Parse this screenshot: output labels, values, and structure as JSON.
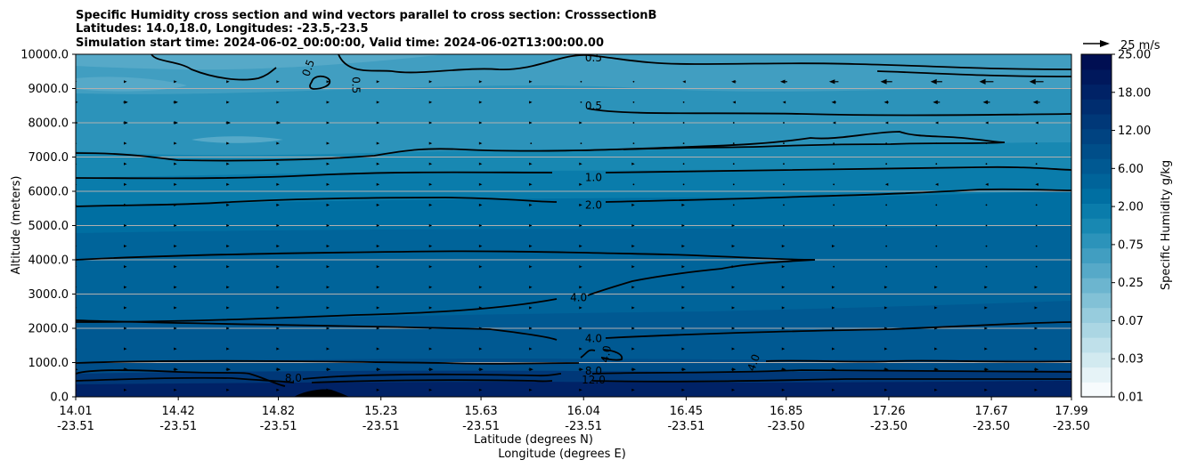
{
  "chart_data": {
    "type": "heatmap",
    "title_lines": [
      "Specific Humidity cross section and wind vectors parallel to cross section: CrosssectionB",
      "Latitudes: 14.0,18.0, Longitudes: -23.5,-23.5",
      "Simulation start time: 2024-06-02_00:00:00, Valid time: 2024-06-02T13:00:00.00"
    ],
    "ylabel": "Altitude (meters)",
    "xlabel_lat": "Latitude (degrees N)",
    "xlabel_lon": "Longitude (degrees E)",
    "ylim": [
      0,
      10000
    ],
    "y_ticks": [
      "0.0",
      "1000.0",
      "2000.0",
      "3000.0",
      "4000.0",
      "5000.0",
      "6000.0",
      "7000.0",
      "8000.0",
      "9000.0",
      "10000.0"
    ],
    "x_ticks": [
      {
        "lat": "14.01",
        "lon": "-23.51"
      },
      {
        "lat": "14.42",
        "lon": "-23.51"
      },
      {
        "lat": "14.82",
        "lon": "-23.51"
      },
      {
        "lat": "15.23",
        "lon": "-23.51"
      },
      {
        "lat": "15.63",
        "lon": "-23.51"
      },
      {
        "lat": "16.04",
        "lon": "-23.51"
      },
      {
        "lat": "16.45",
        "lon": "-23.51"
      },
      {
        "lat": "16.85",
        "lon": "-23.50"
      },
      {
        "lat": "17.26",
        "lon": "-23.50"
      },
      {
        "lat": "17.67",
        "lon": "-23.50"
      },
      {
        "lat": "17.99",
        "lon": "-23.50"
      }
    ],
    "colorbar": {
      "label": "Specific Humidity g/kg",
      "tick_labels": [
        "0.01",
        "0.03",
        "0.07",
        "0.25",
        "0.75",
        "2.00",
        "6.00",
        "12.00",
        "18.00",
        "25.00"
      ],
      "colors": [
        "#f7fbfd",
        "#e6f3f7",
        "#d2eaf0",
        "#bfe0ea",
        "#abd6e3",
        "#97ccdd",
        "#82c1d6",
        "#6cb5cf",
        "#56a9c8",
        "#419ec1",
        "#2c93ba",
        "#1888b2",
        "#0a7cab",
        "#006fa2",
        "#00649a",
        "#005992",
        "#004e89",
        "#004381",
        "#003878",
        "#002d6f",
        "#002266",
        "#00185c",
        "#000f52"
      ]
    },
    "contour_labels": [
      {
        "text": "0.5",
        "alt": 9900,
        "lat": 16.08
      },
      {
        "text": "0.5",
        "alt": 9600,
        "lat": 14.94,
        "rotate": -70
      },
      {
        "text": "0.5",
        "alt": 9100,
        "lat": 15.13,
        "rotate": 90
      },
      {
        "text": "0.5",
        "alt": 8500,
        "lat": 16.08
      },
      {
        "text": "1.0",
        "alt": 6400,
        "lat": 16.08
      },
      {
        "text": "2.0",
        "alt": 5600,
        "lat": 16.08
      },
      {
        "text": "4.0",
        "alt": 2900,
        "lat": 16.02
      },
      {
        "text": "4.0",
        "alt": 1700,
        "lat": 16.08
      },
      {
        "text": "4.0",
        "alt": 1250,
        "lat": 16.13,
        "rotate": -80
      },
      {
        "text": "4.0",
        "alt": 1000,
        "lat": 16.72,
        "rotate": -70
      },
      {
        "text": "8.0",
        "alt": 750,
        "lat": 16.08
      },
      {
        "text": "8.0",
        "alt": 550,
        "lat": 14.88
      },
      {
        "text": "12.0",
        "alt": 500,
        "lat": 16.08
      }
    ],
    "wind_reference": {
      "speed_label": "25 m/s",
      "speed": 25
    },
    "wind_rows_m": [
      9200,
      8600,
      8000,
      7400,
      6800,
      6200,
      5600,
      5000,
      4400,
      3800,
      3200,
      2600,
      2000,
      1400,
      800,
      200
    ],
    "wind_cols_lat": [
      14.01,
      14.21,
      14.41,
      14.62,
      14.82,
      15.02,
      15.22,
      15.43,
      15.63,
      15.83,
      16.03,
      16.24,
      16.44,
      16.64,
      16.84,
      17.04,
      17.25,
      17.45,
      17.65,
      17.85
    ],
    "wind_u_ms": [
      [
        1,
        1,
        1,
        1,
        1,
        1,
        1,
        1,
        1,
        1,
        0,
        0,
        -1,
        -2,
        -3,
        -4,
        -5,
        -5,
        -6,
        -6
      ],
      [
        2,
        2,
        2,
        1,
        1,
        1,
        1,
        1,
        1,
        1,
        0,
        0,
        0,
        -1,
        -1,
        -2,
        -2,
        -3,
        -3,
        -3
      ],
      [
        2,
        2,
        2,
        2,
        2,
        1,
        1,
        1,
        1,
        1,
        1,
        0,
        0,
        0,
        0,
        -1,
        -1,
        -1,
        -1,
        -1
      ],
      [
        1,
        1,
        1,
        1,
        1,
        1,
        1,
        1,
        1,
        0,
        0,
        0,
        0,
        0,
        0,
        0,
        0,
        0,
        0,
        0
      ],
      [
        1,
        1,
        1,
        1,
        1,
        1,
        1,
        1,
        1,
        1,
        1,
        1,
        0,
        0,
        0,
        0,
        0,
        0,
        0,
        0
      ],
      [
        1,
        1,
        1,
        1,
        1,
        1,
        1,
        1,
        1,
        1,
        1,
        0,
        0,
        0,
        0,
        0,
        -1,
        -1,
        -1,
        -1
      ],
      [
        1,
        1,
        1,
        1,
        1,
        1,
        1,
        1,
        1,
        1,
        1,
        1,
        1,
        0,
        0,
        0,
        0,
        0,
        0,
        0
      ],
      [
        1,
        1,
        1,
        1,
        1,
        1,
        1,
        1,
        1,
        1,
        1,
        1,
        1,
        1,
        0,
        0,
        0,
        0,
        0,
        0
      ],
      [
        1,
        1,
        1,
        1,
        1,
        1,
        1,
        1,
        1,
        1,
        1,
        1,
        1,
        1,
        1,
        1,
        0,
        0,
        0,
        0
      ],
      [
        1,
        1,
        1,
        1,
        1,
        1,
        1,
        1,
        1,
        1,
        1,
        1,
        1,
        1,
        1,
        0,
        0,
        0,
        0,
        0
      ],
      [
        1,
        1,
        1,
        1,
        1,
        1,
        1,
        1,
        1,
        1,
        1,
        1,
        1,
        1,
        1,
        1,
        1,
        1,
        1,
        1
      ],
      [
        1,
        1,
        1,
        1,
        1,
        1,
        1,
        1,
        1,
        1,
        1,
        1,
        1,
        1,
        1,
        1,
        1,
        1,
        1,
        1
      ],
      [
        1,
        1,
        1,
        1,
        1,
        1,
        1,
        1,
        1,
        1,
        1,
        1,
        1,
        1,
        1,
        1,
        1,
        1,
        1,
        1
      ],
      [
        1,
        1,
        1,
        1,
        1,
        1,
        1,
        1,
        1,
        1,
        1,
        1,
        1,
        1,
        1,
        1,
        1,
        1,
        1,
        1
      ],
      [
        2,
        2,
        2,
        2,
        2,
        2,
        2,
        2,
        2,
        2,
        2,
        2,
        2,
        2,
        2,
        2,
        2,
        2,
        2,
        2
      ],
      [
        1,
        1,
        1,
        1,
        1,
        1,
        1,
        1,
        1,
        1,
        1,
        1,
        1,
        1,
        1,
        1,
        1,
        1,
        1,
        1
      ]
    ]
  }
}
